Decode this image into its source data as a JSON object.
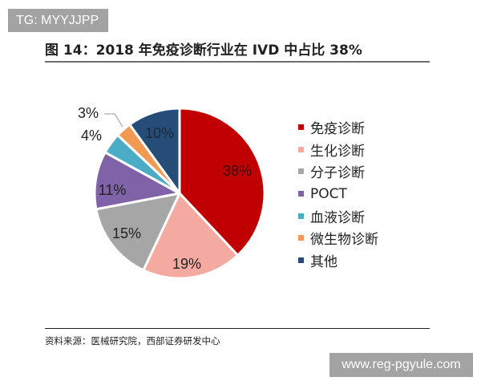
{
  "watermarks": {
    "top": "TG: MYYJJPP",
    "bottom": "www.reg-pgyule.com"
  },
  "header": {
    "title": "图 14：2018 年免疫诊断行业在 IVD 中占比 38%"
  },
  "footer": {
    "source": "资料来源：医械研究院，西部证券研发中心"
  },
  "legend": {
    "items": [
      {
        "label": "免疫诊断",
        "color": "#C00000"
      },
      {
        "label": "生化诊断",
        "color": "#F4A9A1"
      },
      {
        "label": "分子诊断",
        "color": "#A6A6A6"
      },
      {
        "label": "POCT",
        "color": "#7F62A8"
      },
      {
        "label": "血液诊断",
        "color": "#4BACC6"
      },
      {
        "label": "微生物诊断",
        "color": "#F29A55"
      },
      {
        "label": "其他",
        "color": "#254D78"
      }
    ]
  },
  "chart_data": {
    "type": "pie",
    "title": "图 14：2018 年免疫诊断行业在 IVD 中占比 38%",
    "categories": [
      "免疫诊断",
      "生化诊断",
      "分子诊断",
      "POCT",
      "血液诊断",
      "微生物诊断",
      "其他"
    ],
    "values": [
      38,
      19,
      15,
      11,
      4,
      3,
      10
    ],
    "labels": [
      "38%",
      "19%",
      "15%",
      "11%",
      "4%",
      "3%",
      "10%"
    ],
    "colors": [
      "#C00000",
      "#F4A9A1",
      "#A6A6A6",
      "#7F62A8",
      "#4BACC6",
      "#F29A55",
      "#254D78"
    ],
    "unit": "%",
    "start_angle": "12 o'clock, clockwise",
    "legend_position": "right",
    "source": "资料来源：医械研究院，西部证券研发中心"
  }
}
